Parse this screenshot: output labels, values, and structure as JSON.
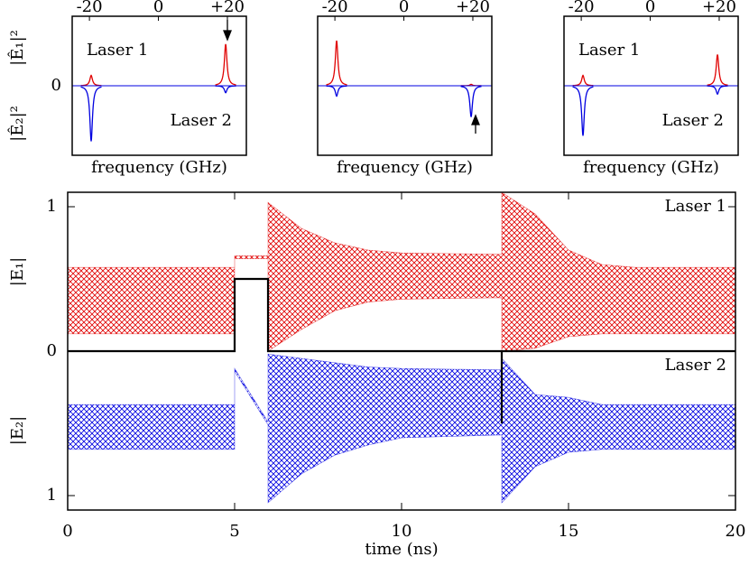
{
  "chart_data": [
    {
      "type": "spike",
      "xlabel": "frequency (GHz)",
      "xlim": [
        -25,
        25.5
      ],
      "ylim": [
        -1,
        1
      ],
      "xticks": [
        -20,
        0,
        {
          "value": 20,
          "label": "+20"
        }
      ],
      "yticks": [
        0
      ],
      "ylabel_top": "|Ê₁|²",
      "ylabel_bottom": "|Ê₂|²",
      "text_top": "Laser 1",
      "text_bottom": "Laser 2",
      "series": [
        {
          "color": "#e00000",
          "x": [
            -19.5,
            19.5
          ],
          "values": [
            0.15,
            0.6
          ]
        },
        {
          "color": "#0000e0",
          "x": [
            -19.5,
            19.5
          ],
          "values": [
            -0.8,
            -0.1
          ]
        }
      ]
    },
    {
      "type": "spike",
      "xlabel": "frequency (GHz)",
      "xlim": [
        -25,
        25.5
      ],
      "ylim": [
        -1,
        1
      ],
      "xticks": [
        -20,
        0,
        {
          "value": 20,
          "label": "+20"
        }
      ],
      "series": [
        {
          "color": "#e00000",
          "x": [
            -19.5,
            19.5
          ],
          "values": [
            0.65,
            0.02
          ]
        },
        {
          "color": "#0000e0",
          "x": [
            -19.5,
            19.5
          ],
          "values": [
            -0.15,
            -0.45
          ]
        }
      ]
    },
    {
      "type": "spike",
      "xlabel": "frequency (GHz)",
      "xlim": [
        -25,
        25.5
      ],
      "ylim": [
        -1,
        1
      ],
      "xticks": [
        -20,
        0,
        {
          "value": 20,
          "label": "+20"
        }
      ],
      "text_top": "Laser 1",
      "text_bottom": "Laser 2",
      "series": [
        {
          "color": "#e00000",
          "x": [
            -19.5,
            19.5
          ],
          "values": [
            0.15,
            0.45
          ]
        },
        {
          "color": "#0000e0",
          "x": [
            -19.5,
            19.5
          ],
          "values": [
            -0.72,
            -0.12
          ]
        }
      ]
    },
    {
      "type": "band",
      "xlabel": "time (ns)",
      "ylabel_top": "|E₁|",
      "ylabel_bottom": "|E₂|",
      "xlim": [
        0,
        20
      ],
      "ylim": [
        -1.1,
        1.1
      ],
      "xticks": [
        0,
        5,
        10,
        15,
        20
      ],
      "yticks": [
        {
          "value": -1,
          "label": "1"
        },
        0,
        1
      ],
      "series": [
        {
          "name": "Laser 1",
          "color": "#e00000",
          "x": [
            0,
            5,
            5,
            6,
            6,
            7,
            8,
            9,
            10,
            13,
            13,
            14,
            15,
            16,
            17,
            20
          ],
          "values": [
            0.58,
            0.58,
            0.66,
            0.66,
            1.03,
            0.85,
            0.75,
            0.7,
            0.68,
            0.67,
            1.1,
            0.95,
            0.7,
            0.6,
            0.58,
            0.58
          ],
          "lower_values": [
            0.12,
            0.12,
            0.64,
            0.64,
            0.0,
            0.15,
            0.28,
            0.34,
            0.36,
            0.37,
            0.0,
            0.02,
            0.1,
            0.12,
            0.12,
            0.12
          ]
        },
        {
          "name": "Laser 2",
          "color": "#0000e0",
          "x": [
            0,
            5,
            5,
            6,
            6,
            7,
            8,
            9,
            10,
            13,
            13,
            14,
            15,
            16,
            17,
            20
          ],
          "values": [
            -0.37,
            -0.37,
            -0.12,
            -0.49,
            -0.02,
            -0.05,
            -0.08,
            -0.11,
            -0.12,
            -0.13,
            -0.05,
            -0.3,
            -0.32,
            -0.37,
            -0.37,
            -0.37
          ],
          "lower_values": [
            -0.68,
            -0.68,
            -0.14,
            -0.51,
            -1.05,
            -0.85,
            -0.72,
            -0.65,
            -0.6,
            -0.58,
            -1.05,
            -0.8,
            -0.7,
            -0.68,
            -0.68,
            -0.68
          ]
        }
      ],
      "control": {
        "color": "#000000",
        "x": [
          0,
          5,
          5,
          6,
          6,
          13,
          13,
          13,
          20
        ],
        "values": [
          0,
          0,
          0.5,
          0.5,
          0,
          0,
          -0.5,
          0,
          0
        ]
      }
    }
  ]
}
